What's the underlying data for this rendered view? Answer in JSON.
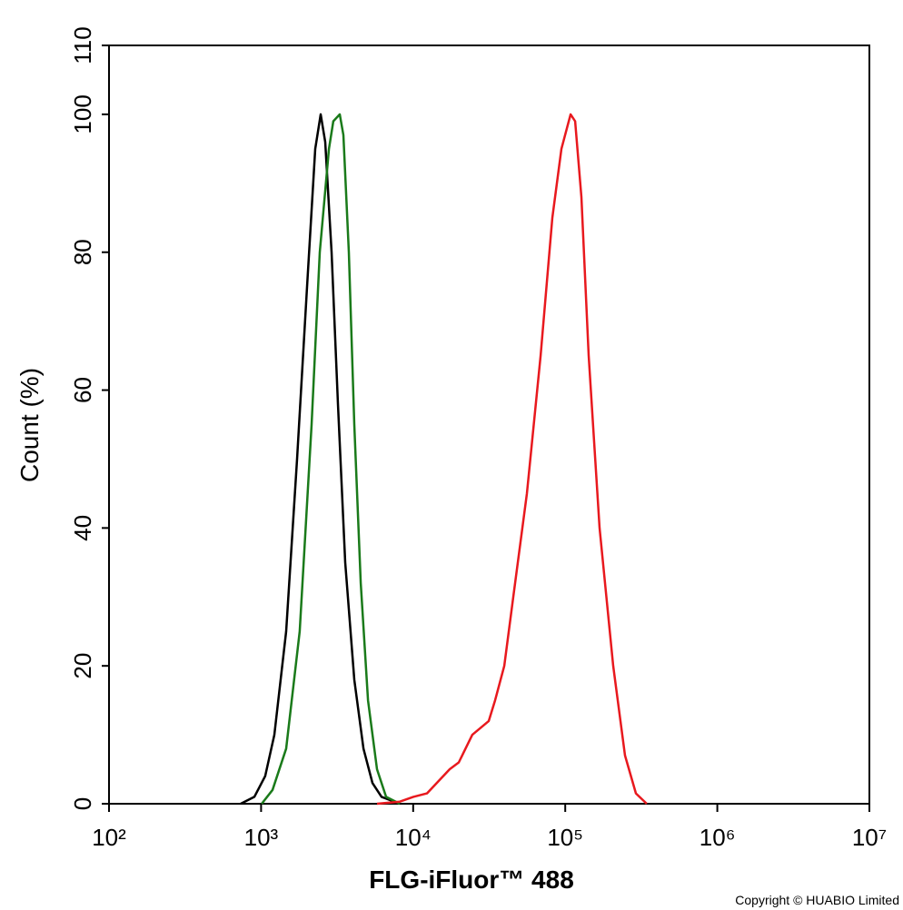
{
  "chart_data": {
    "type": "histogram-lines",
    "xlabel": "FLG-iFluor™ 488",
    "ylabel": "Count  (%)",
    "note": "Copyright © HUABIO Limited",
    "xscale": "log",
    "xlim": [
      100,
      10000000
    ],
    "xticks": [
      {
        "value": 100,
        "label": "10²"
      },
      {
        "value": 1000,
        "label": "10³"
      },
      {
        "value": 10000,
        "label": "10⁴"
      },
      {
        "value": 100000,
        "label": "10⁵"
      },
      {
        "value": 1000000,
        "label": "10⁶"
      },
      {
        "value": 10000000,
        "label": "10⁷"
      }
    ],
    "ylim": [
      0,
      110
    ],
    "yticks": [
      0,
      20,
      40,
      60,
      80,
      100,
      110
    ],
    "series": [
      {
        "color": "#000000",
        "x": [
          735,
          903,
          1064,
          1223,
          1462,
          1725,
          2005,
          2270,
          2466,
          2642,
          2909,
          3200,
          3573,
          4102,
          4710,
          5397,
          6194,
          8166
        ],
        "values": [
          0,
          1,
          4,
          10,
          25,
          50,
          75,
          95,
          100,
          96,
          80,
          58,
          35,
          18,
          8,
          3,
          1,
          0
        ]
      },
      {
        "color": "#1a7a1a",
        "x": [
          1009,
          1189,
          1462,
          1795,
          2148,
          2432,
          2793,
          2985,
          3290,
          3475,
          3776,
          4102,
          4519,
          5047,
          5781,
          6637,
          8166
        ],
        "values": [
          0,
          2,
          8,
          25,
          55,
          80,
          95,
          99,
          100,
          97,
          80,
          55,
          32,
          15,
          5,
          1,
          0
        ]
      },
      {
        "color": "#e8191e",
        "x": [
          5781,
          8166,
          10030,
          12330,
          17380,
          19950,
          24490,
          31400,
          34590,
          39720,
          45500,
          55980,
          68870,
          82220,
          94410,
          108400,
          116100,
          127700,
          142600,
          168200,
          206600,
          247200,
          291700,
          343600
        ],
        "values": [
          0,
          0.3,
          1,
          1.5,
          5,
          6,
          10,
          12,
          15,
          20,
          30,
          45,
          65,
          85,
          95,
          100,
          99,
          88,
          65,
          40,
          20,
          7,
          1.5,
          0
        ]
      }
    ]
  }
}
